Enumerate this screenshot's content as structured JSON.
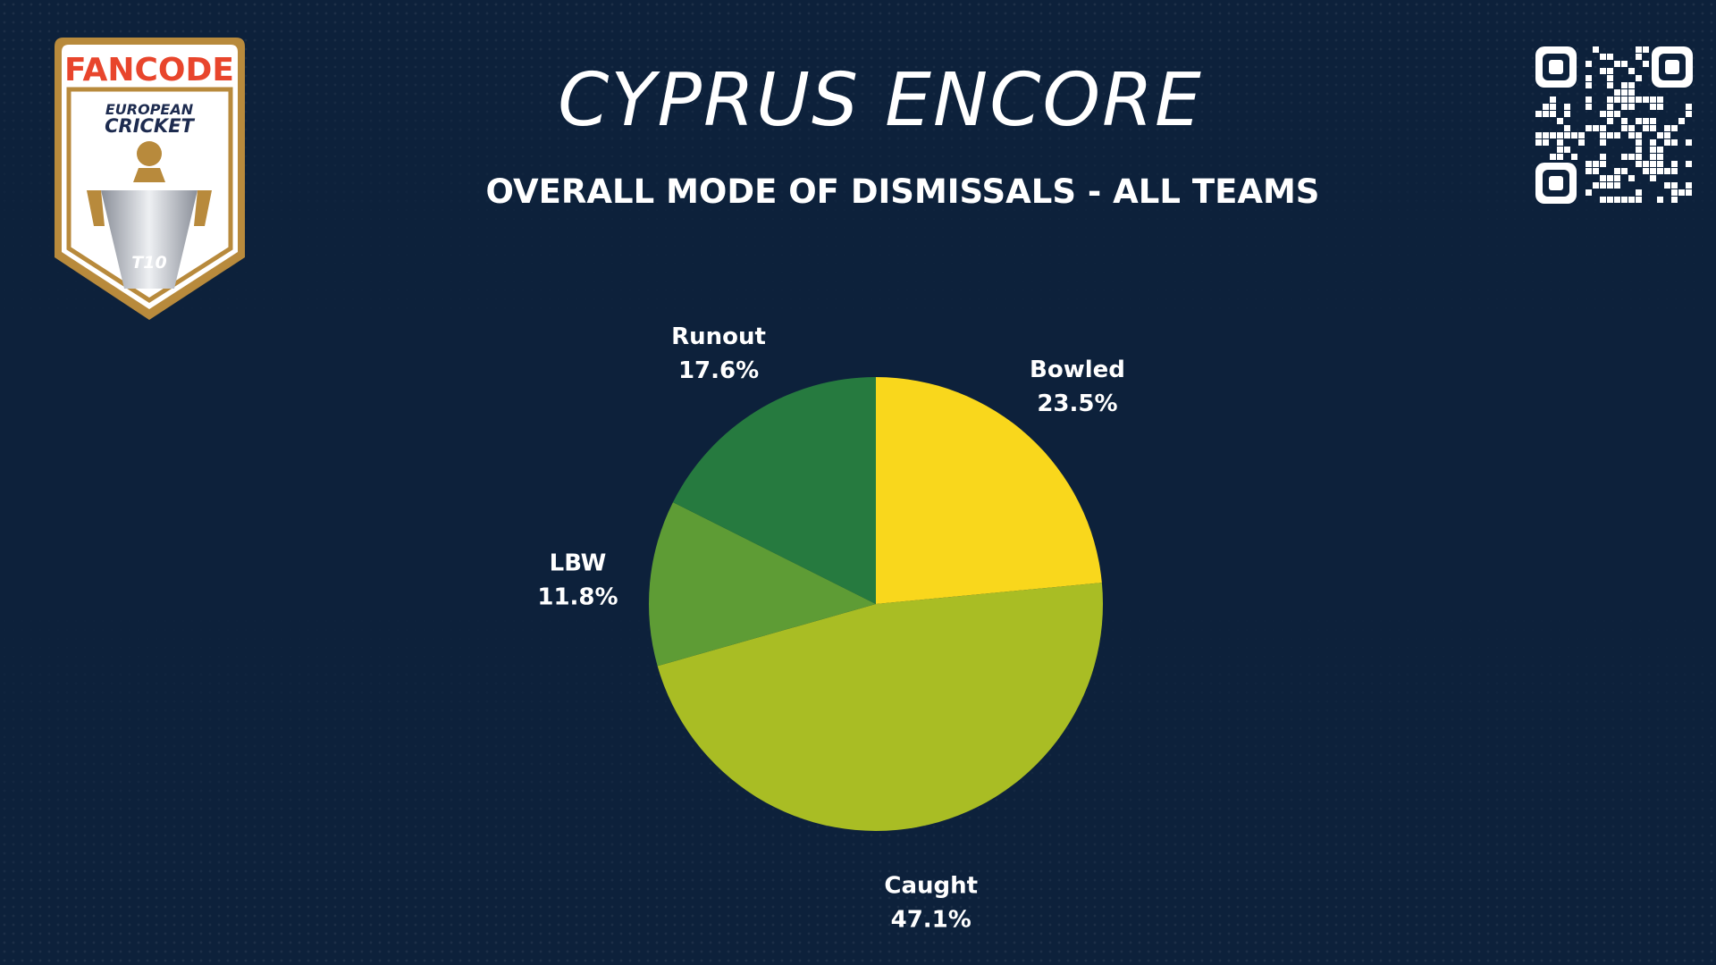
{
  "header": {
    "title": "CYPRUS ENCORE",
    "subtitle": "OVERALL MODE OF DISMISSALS - ALL TEAMS"
  },
  "logo": {
    "brand": "FANCODE",
    "line1": "EUROPEAN",
    "line2": "CRICKET",
    "format": "T10"
  },
  "colors": {
    "background": "#0d213b",
    "logo_gold": "#b88a3c",
    "brand_red": "#e8452c",
    "brand_navy": "#1d2b4f"
  },
  "chart_data": {
    "type": "pie",
    "start_angle_deg": 0,
    "direction": "clockwise",
    "slices": [
      {
        "label": "Bowled",
        "value": 23.5,
        "display": "23.5%",
        "color": "#f9d71c"
      },
      {
        "label": "Caught",
        "value": 47.1,
        "display": "47.1%",
        "color": "#a9bd24"
      },
      {
        "label": "LBW",
        "value": 11.8,
        "display": "11.8%",
        "color": "#5e9c35"
      },
      {
        "label": "Runout",
        "value": 17.6,
        "display": "17.6%",
        "color": "#267a3f"
      }
    ]
  }
}
